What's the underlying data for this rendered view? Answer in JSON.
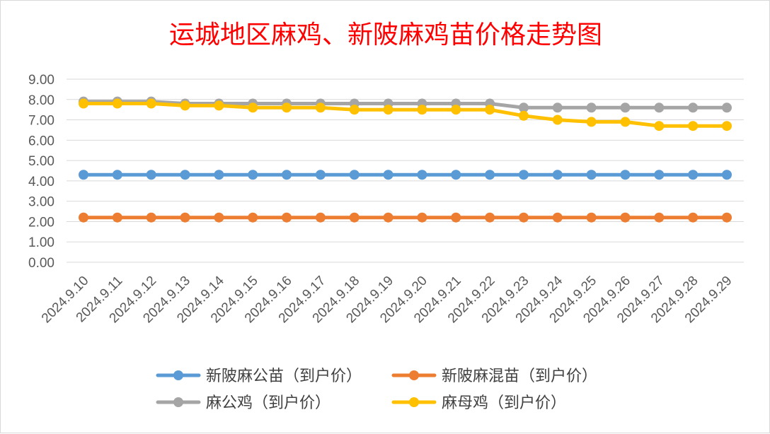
{
  "chart_data": {
    "type": "line",
    "title": "运城地区麻鸡、新陂麻鸡苗价格走势图",
    "title_color": "#ff0000",
    "categories": [
      "2024.9.10",
      "2024.9.11",
      "2024.9.12",
      "2024.9.13",
      "2024.9.14",
      "2024.9.15",
      "2024.9.16",
      "2024.9.17",
      "2024.9.18",
      "2024.9.19",
      "2024.9.20",
      "2024.9.21",
      "2024.9.22",
      "2024.9.23",
      "2024.9.24",
      "2024.9.25",
      "2024.9.26",
      "2024.9.27",
      "2024.9.28",
      "2024.9.29"
    ],
    "ylim": [
      0,
      9
    ],
    "y_ticks": [
      "0.00",
      "1.00",
      "2.00",
      "3.00",
      "4.00",
      "5.00",
      "6.00",
      "7.00",
      "8.00",
      "9.00"
    ],
    "grid": true,
    "legend_position": "bottom",
    "series": [
      {
        "name": "新陂麻公苗（到户价）",
        "color": "#5b9bd5",
        "values": [
          4.3,
          4.3,
          4.3,
          4.3,
          4.3,
          4.3,
          4.3,
          4.3,
          4.3,
          4.3,
          4.3,
          4.3,
          4.3,
          4.3,
          4.3,
          4.3,
          4.3,
          4.3,
          4.3,
          4.3
        ]
      },
      {
        "name": "新陂麻混苗（到户价）",
        "color": "#ed7d31",
        "values": [
          2.2,
          2.2,
          2.2,
          2.2,
          2.2,
          2.2,
          2.2,
          2.2,
          2.2,
          2.2,
          2.2,
          2.2,
          2.2,
          2.2,
          2.2,
          2.2,
          2.2,
          2.2,
          2.2,
          2.2
        ]
      },
      {
        "name": "麻公鸡（到户价）",
        "color": "#a5a5a5",
        "values": [
          7.9,
          7.9,
          7.9,
          7.8,
          7.8,
          7.8,
          7.8,
          7.8,
          7.8,
          7.8,
          7.8,
          7.8,
          7.8,
          7.6,
          7.6,
          7.6,
          7.6,
          7.6,
          7.6,
          7.6
        ]
      },
      {
        "name": "麻母鸡（到户价）",
        "color": "#ffc000",
        "values": [
          7.8,
          7.8,
          7.8,
          7.7,
          7.7,
          7.6,
          7.6,
          7.6,
          7.5,
          7.5,
          7.5,
          7.5,
          7.5,
          7.2,
          7.0,
          6.9,
          6.9,
          6.7,
          6.7,
          6.7
        ]
      }
    ]
  }
}
